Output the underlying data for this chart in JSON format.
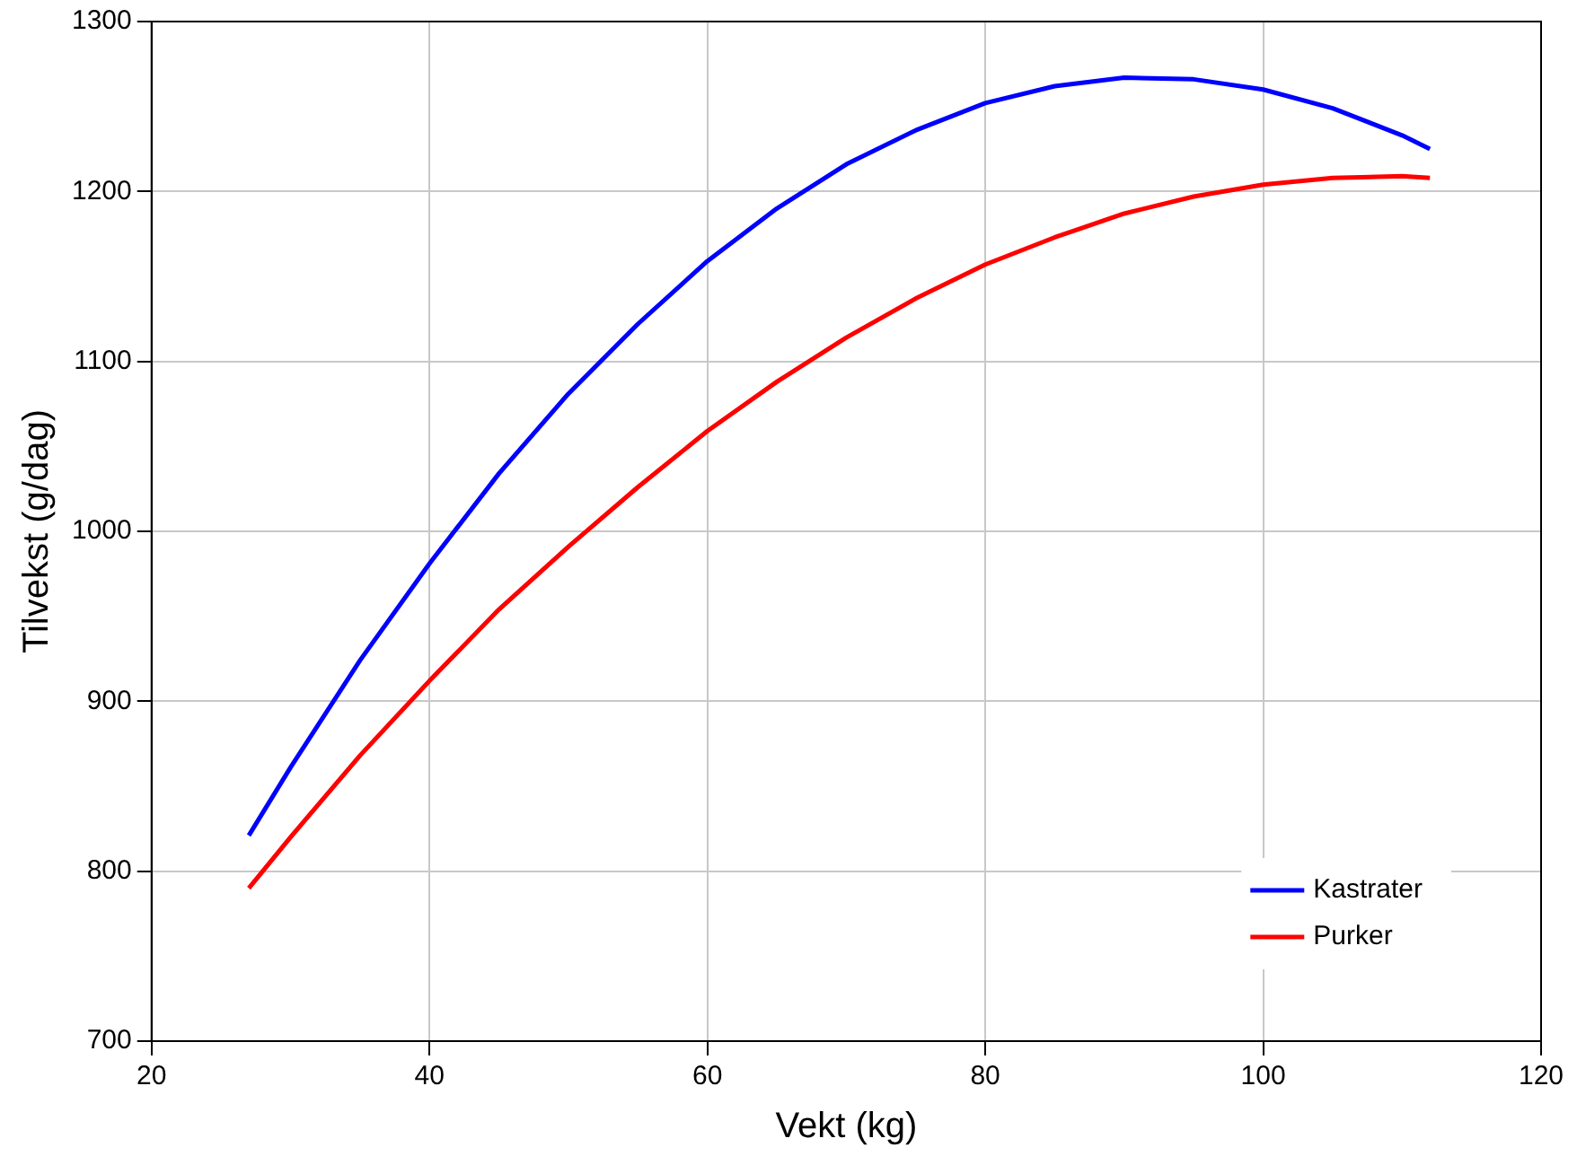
{
  "chart_data": {
    "type": "line",
    "xlabel": "Vekt (kg)",
    "ylabel": "Tilvekst (g/dag)",
    "x": [
      27,
      30,
      35,
      40,
      45,
      50,
      55,
      60,
      65,
      70,
      75,
      80,
      85,
      90,
      95,
      100,
      105,
      110,
      112
    ],
    "series": [
      {
        "name": "Kastrater",
        "color": "#0000ff",
        "values": [
          821,
          861,
          924,
          981,
          1034,
          1081,
          1122,
          1159,
          1190,
          1216,
          1236,
          1252,
          1262,
          1267,
          1266,
          1260,
          1249,
          1233,
          1225
        ]
      },
      {
        "name": "Purker",
        "color": "#ff0000",
        "values": [
          790,
          820,
          868,
          912,
          954,
          991,
          1026,
          1059,
          1088,
          1114,
          1137,
          1157,
          1173,
          1187,
          1197,
          1204,
          1208,
          1209,
          1208
        ]
      }
    ],
    "xlim": [
      20,
      120
    ],
    "xticks": [
      20,
      40,
      60,
      80,
      100,
      120
    ],
    "ylim": [
      700,
      1300
    ],
    "yticks": [
      700,
      800,
      900,
      1000,
      1100,
      1200,
      1300
    ],
    "grid": true,
    "legend": "bottom right",
    "marker": "none",
    "line_style": "solid"
  }
}
